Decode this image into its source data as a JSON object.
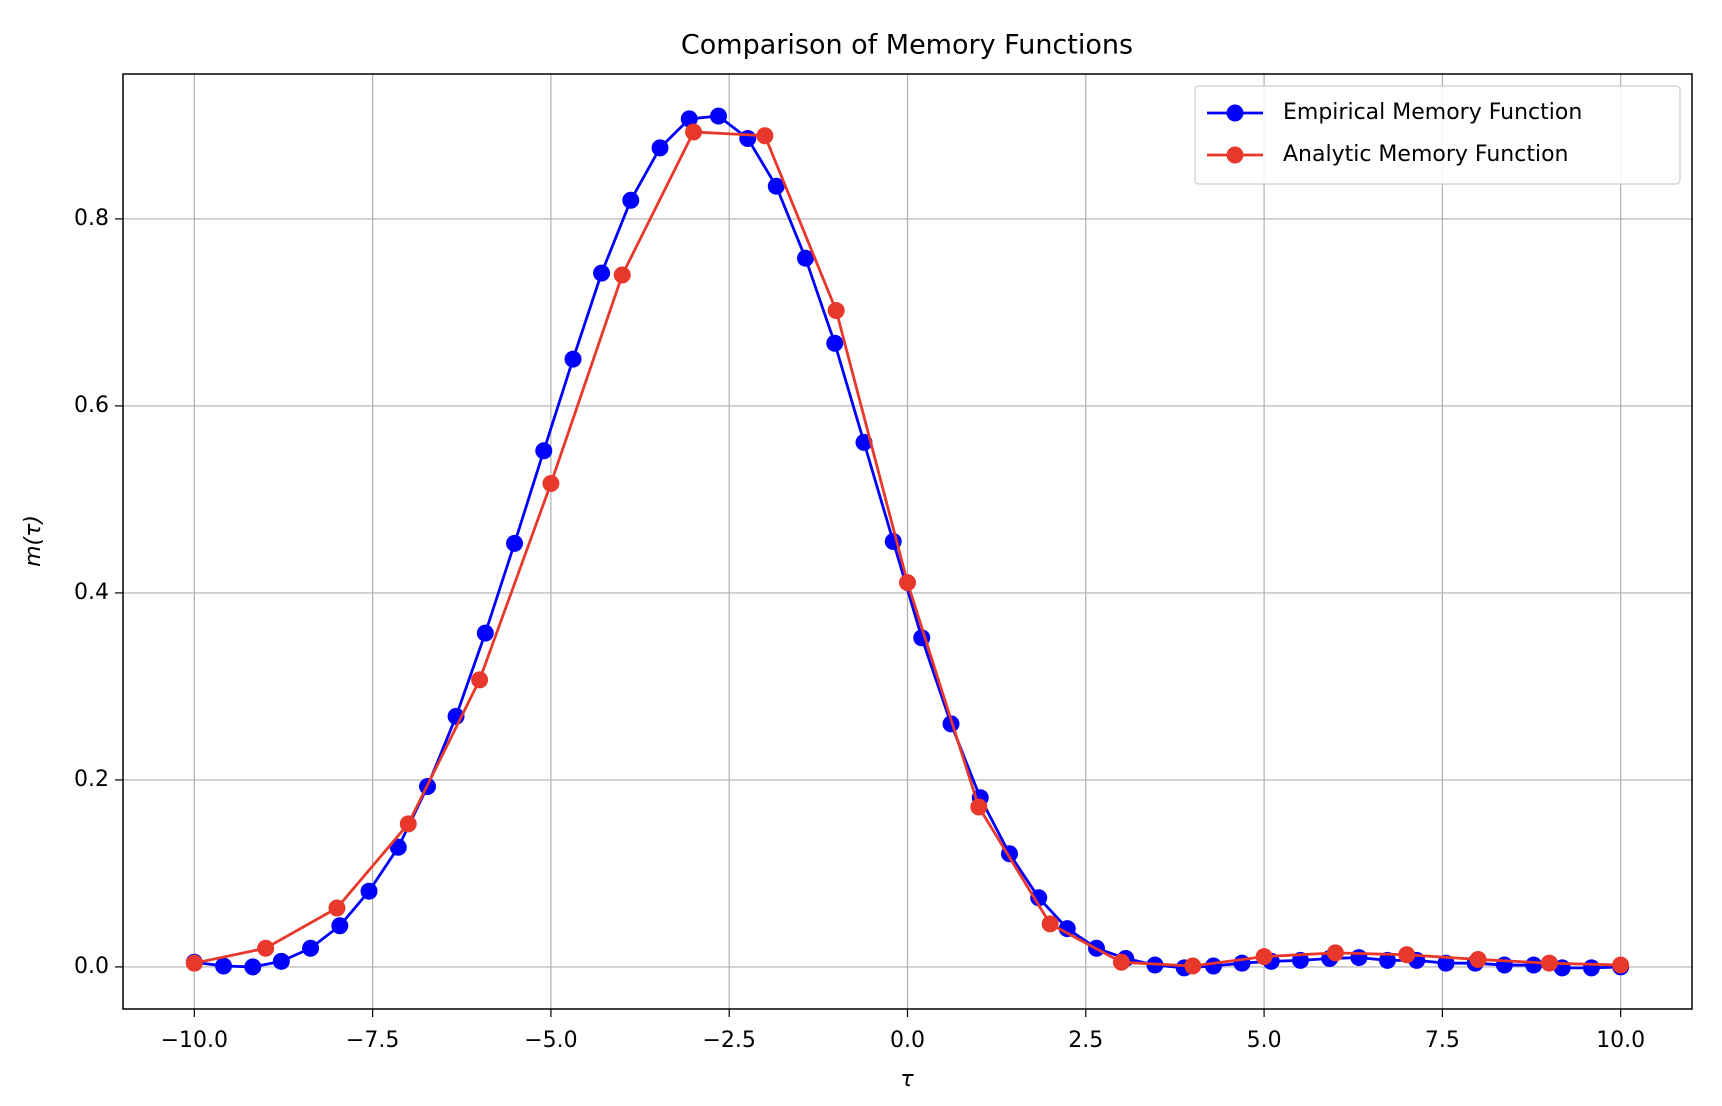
{
  "chart_data": {
    "type": "line",
    "title": "Comparison of Memory Functions",
    "x_label": "τ",
    "y_label": "m(τ)",
    "xlim": [
      -11,
      11
    ],
    "ylim": [
      -0.045,
      0.955
    ],
    "xticks": [
      {
        "value": -10,
        "label": "−10.0"
      },
      {
        "value": -7.5,
        "label": "−7.5"
      },
      {
        "value": -5,
        "label": "−5.0"
      },
      {
        "value": -2.5,
        "label": "−2.5"
      },
      {
        "value": 0,
        "label": "0.0"
      },
      2.5,
      {
        "value": 5,
        "label": "5.0"
      },
      7.5,
      {
        "value": 10,
        "label": "10.0"
      }
    ],
    "yticks": [
      {
        "value": 0,
        "label": "0.0"
      },
      0.2,
      0.4,
      0.6,
      0.8
    ],
    "grid": true,
    "legend": "upper right",
    "series": [
      {
        "name": "Empirical Memory Function",
        "color": "#0000ff",
        "x": [
          -10,
          -9.59,
          -9.18,
          -8.78,
          -8.37,
          -7.96,
          -7.55,
          -7.14,
          -6.73,
          -6.33,
          -5.92,
          -5.51,
          -5.1,
          -4.69,
          -4.29,
          -3.88,
          -3.47,
          -3.06,
          -2.65,
          -2.24,
          -1.84,
          -1.43,
          -1.02,
          -0.61,
          -0.2,
          0.2,
          0.61,
          1.02,
          1.43,
          1.84,
          2.24,
          2.65,
          3.06,
          3.47,
          3.88,
          4.29,
          4.69,
          5.1,
          5.51,
          5.92,
          6.33,
          6.73,
          7.14,
          7.55,
          7.96,
          8.37,
          8.78,
          9.18,
          9.59,
          10
        ],
        "values": [
          0.005,
          0.001,
          0.0,
          0.006,
          0.02,
          0.044,
          0.081,
          0.128,
          0.193,
          0.268,
          0.357,
          0.453,
          0.552,
          0.65,
          0.742,
          0.82,
          0.876,
          0.907,
          0.91,
          0.886,
          0.835,
          0.758,
          0.667,
          0.561,
          0.455,
          0.352,
          0.26,
          0.181,
          0.121,
          0.074,
          0.041,
          0.02,
          0.009,
          0.002,
          -0.001,
          0.001,
          0.004,
          0.006,
          0.007,
          0.009,
          0.01,
          0.007,
          0.007,
          0.004,
          0.004,
          0.002,
          0.002,
          -0.001,
          -0.001,
          0.0
        ]
      },
      {
        "name": "Analytic Memory Function",
        "color": "#e8382b",
        "x": [
          -10,
          -9,
          -8,
          -7,
          -6,
          -5,
          -4,
          -3,
          -2,
          -1,
          0,
          1,
          2,
          3,
          4,
          5,
          6,
          7,
          8,
          9,
          10
        ],
        "values": [
          0.004,
          0.02,
          0.063,
          0.153,
          0.307,
          0.517,
          0.74,
          0.893,
          0.889,
          0.702,
          0.411,
          0.171,
          0.046,
          0.005,
          0.001,
          0.011,
          0.015,
          0.013,
          0.008,
          0.004,
          0.002
        ]
      }
    ]
  }
}
